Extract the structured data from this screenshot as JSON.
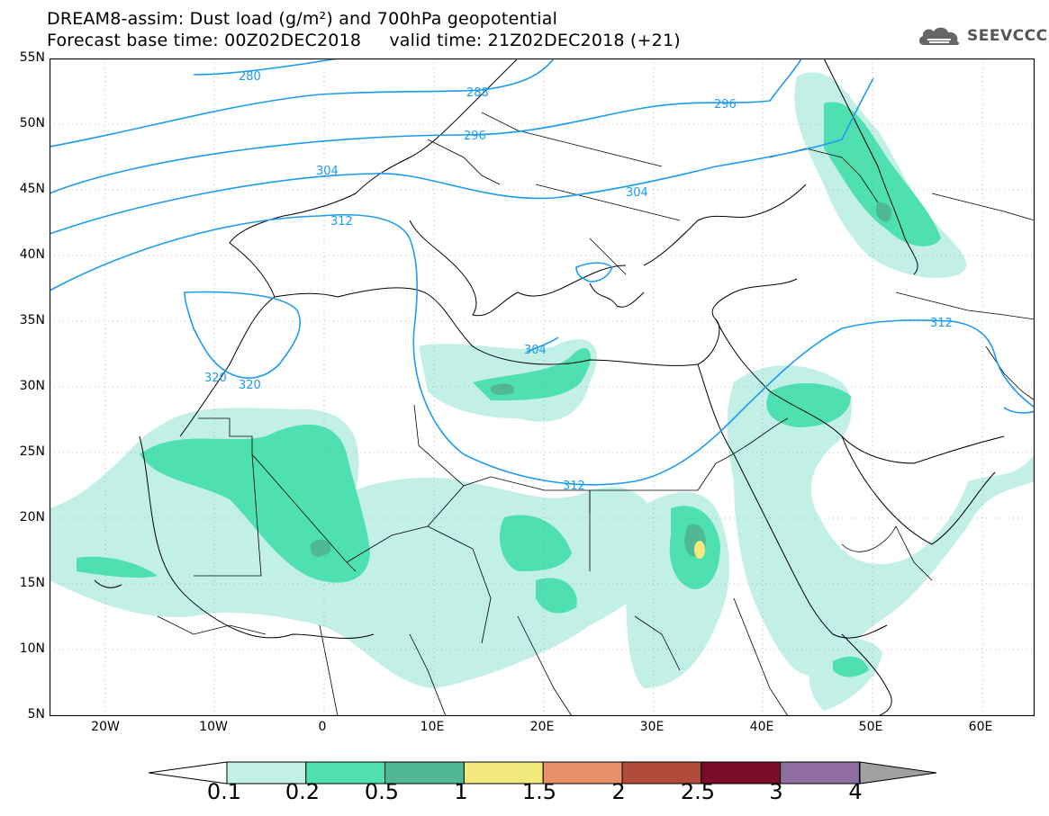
{
  "header": {
    "line1": "DREAM8-assim: Dust load (g/m²) and 700hPa geopotential",
    "line2": "Forecast base time: 00Z02DEC2018     valid time: 21Z02DEC2018 (+21)"
  },
  "logo": {
    "text": "SEEVCCC",
    "icon": "cloud-icon"
  },
  "axes": {
    "lat_labels": [
      "55N",
      "50N",
      "45N",
      "40N",
      "35N",
      "30N",
      "25N",
      "20N",
      "15N",
      "10N",
      "5N"
    ],
    "lon_labels": [
      "20W",
      "10W",
      "0",
      "10E",
      "20E",
      "30E",
      "40E",
      "50E",
      "60E"
    ]
  },
  "contours": [
    "280",
    "288",
    "296",
    "296",
    "296",
    "304",
    "304",
    "304",
    "312",
    "312",
    "312",
    "304",
    "320",
    "320"
  ],
  "colorbar": {
    "labels": [
      "0.1",
      "0.2",
      "0.5",
      "1",
      "1.5",
      "2",
      "2.5",
      "3",
      "4"
    ],
    "colors": [
      "#c2f0e6",
      "#4ee0b0",
      "#4fb894",
      "#f2e87c",
      "#e8906a",
      "#b04a3a",
      "#7a0d28",
      "#8e6ea0",
      "#a0a0a0"
    ]
  },
  "colors": {
    "contour_line": "#1b9cf0",
    "border": "#000000"
  }
}
